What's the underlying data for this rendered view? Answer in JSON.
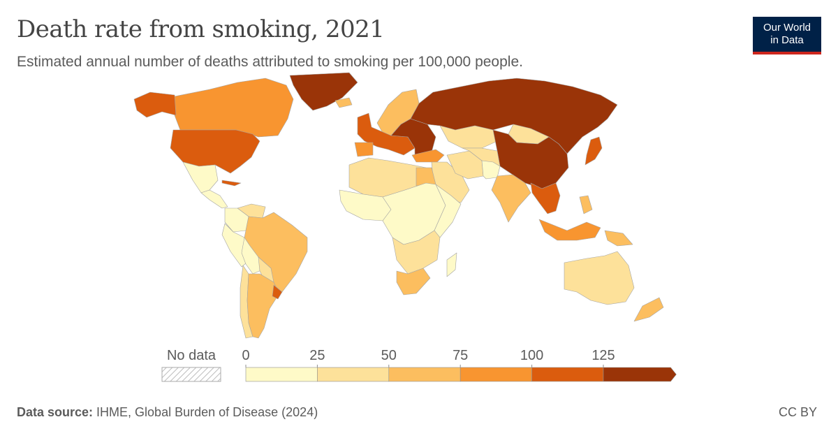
{
  "header": {
    "title": "Death rate from smoking, 2021",
    "subtitle": "Estimated annual number of deaths attributed to smoking per 100,000 people."
  },
  "logo": {
    "line1": "Our World",
    "line2": "in Data"
  },
  "legend": {
    "no_data_label": "No data",
    "ticks": [
      "0",
      "25",
      "50",
      "75",
      "100",
      "125"
    ],
    "bins": [
      {
        "from": 0,
        "to": 25,
        "color": "#fefac8"
      },
      {
        "from": 25,
        "to": 50,
        "color": "#fde19a"
      },
      {
        "from": 50,
        "to": 75,
        "color": "#fcbe5f"
      },
      {
        "from": 75,
        "to": 100,
        "color": "#f89530"
      },
      {
        "from": 100,
        "to": 125,
        "color": "#db5c0e"
      },
      {
        "from": 125,
        "to": null,
        "color": "#9a3408"
      }
    ],
    "no_data_color": "#eeeeee"
  },
  "map_regions": [
    {
      "name": "Greenland",
      "bin": 5
    },
    {
      "name": "Canada",
      "bin": 3
    },
    {
      "name": "Alaska",
      "bin": 4
    },
    {
      "name": "United States",
      "bin": 4
    },
    {
      "name": "Mexico",
      "bin": 0
    },
    {
      "name": "Central America",
      "bin": 0
    },
    {
      "name": "Cuba",
      "bin": 4
    },
    {
      "name": "Venezuela",
      "bin": 1
    },
    {
      "name": "Colombia",
      "bin": 0
    },
    {
      "name": "Peru",
      "bin": 0
    },
    {
      "name": "Brazil",
      "bin": 2
    },
    {
      "name": "Bolivia",
      "bin": 0
    },
    {
      "name": "Paraguay",
      "bin": 1
    },
    {
      "name": "Chile",
      "bin": 1
    },
    {
      "name": "Argentina",
      "bin": 2
    },
    {
      "name": "Uruguay",
      "bin": 4
    },
    {
      "name": "Iceland",
      "bin": 2
    },
    {
      "name": "Scandinavia",
      "bin": 2
    },
    {
      "name": "Western Europe",
      "bin": 4
    },
    {
      "name": "Eastern Europe",
      "bin": 5
    },
    {
      "name": "Spain",
      "bin": 3
    },
    {
      "name": "Russia",
      "bin": 5
    },
    {
      "name": "Kazakhstan",
      "bin": 1
    },
    {
      "name": "Mongolia",
      "bin": 1
    },
    {
      "name": "China",
      "bin": 5
    },
    {
      "name": "Japan",
      "bin": 4
    },
    {
      "name": "Turkey",
      "bin": 3
    },
    {
      "name": "Middle East",
      "bin": 1
    },
    {
      "name": "Iran",
      "bin": 1
    },
    {
      "name": "Central Asia",
      "bin": 1
    },
    {
      "name": "Afghanistan",
      "bin": 0
    },
    {
      "name": "India",
      "bin": 2
    },
    {
      "name": "Southeast Asia",
      "bin": 4
    },
    {
      "name": "Indonesia",
      "bin": 3
    },
    {
      "name": "Philippines",
      "bin": 2
    },
    {
      "name": "Papua New Guinea",
      "bin": 2
    },
    {
      "name": "North Africa",
      "bin": 1
    },
    {
      "name": "Egypt",
      "bin": 2
    },
    {
      "name": "West Africa",
      "bin": 0
    },
    {
      "name": "Central Africa",
      "bin": 0
    },
    {
      "name": "East Africa",
      "bin": 0
    },
    {
      "name": "Southern Africa",
      "bin": 1
    },
    {
      "name": "South Africa",
      "bin": 2
    },
    {
      "name": "Madagascar",
      "bin": 0
    },
    {
      "name": "Australia",
      "bin": 1
    },
    {
      "name": "New Zealand",
      "bin": 2
    }
  ],
  "footer": {
    "source_label": "Data source:",
    "source_text": " IHME, Global Burden of Disease (2024)",
    "license": "CC BY"
  }
}
